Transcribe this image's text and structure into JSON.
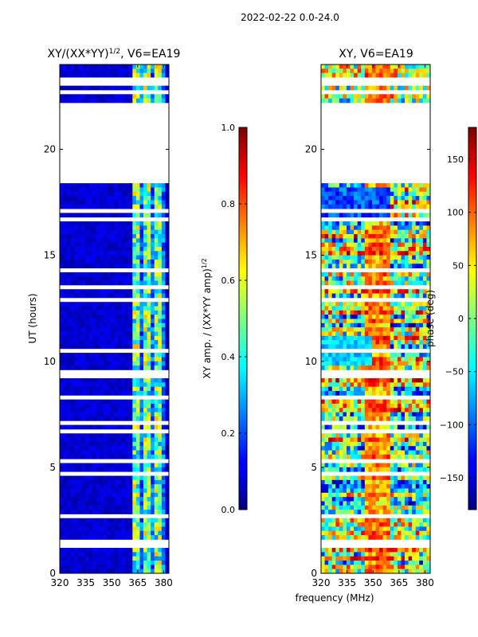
{
  "suptitle": "2022-02-22 0.0-24.0",
  "shared_xlabel": "frequency (MHz)",
  "chart_data": [
    {
      "type": "heatmap",
      "title_main": "XY/(XX*YY)",
      "title_sup": "1/2",
      "title_suffix": ", V6=EA19",
      "xlabel": "frequency (MHz)",
      "ylabel": "UT (hours)",
      "xlim": [
        320,
        383
      ],
      "ylim": [
        0,
        24
      ],
      "xticks": [
        320,
        335,
        350,
        365,
        380
      ],
      "yticks": [
        0,
        5,
        10,
        15,
        20
      ],
      "colorbar": {
        "label_main": "XY amp. / (XX*YY amp)",
        "label_sup": "1/2",
        "range": [
          0.0,
          1.0
        ],
        "ticks": [
          "0.0",
          "0.2",
          "0.4",
          "0.6",
          "0.8",
          "1.0"
        ],
        "tick_values": [
          0.0,
          0.2,
          0.4,
          0.6,
          0.8,
          1.0
        ]
      },
      "data_gaps_hours": [
        [
          18.5,
          22.2
        ],
        [
          22.6,
          22.8
        ],
        [
          23.1,
          23.3
        ],
        [
          17.05,
          17.15
        ],
        [
          16.55,
          16.7
        ],
        [
          15.55,
          15.65
        ],
        [
          14.2,
          14.3
        ],
        [
          13.45,
          13.55
        ],
        [
          12.85,
          12.95
        ],
        [
          12.15,
          12.25
        ],
        [
          10.45,
          10.55
        ],
        [
          9.3,
          9.6
        ],
        [
          8.15,
          8.3
        ],
        [
          7.05,
          7.15
        ],
        [
          6.55,
          6.7
        ],
        [
          5.3,
          5.4
        ],
        [
          4.55,
          4.75
        ],
        [
          3.35,
          3.45
        ],
        [
          2.65,
          2.75
        ],
        [
          1.45,
          1.55
        ],
        [
          1.25,
          1.35
        ]
      ]
    },
    {
      "type": "heatmap",
      "title": "XY, V6=EA19",
      "xlabel": "frequency (MHz)",
      "xlim": [
        320,
        383
      ],
      "ylim": [
        0,
        24
      ],
      "xticks": [
        320,
        335,
        350,
        365,
        380
      ],
      "yticks": [
        0,
        5,
        10,
        15,
        20
      ],
      "colorbar": {
        "label": "phase (deg)",
        "range": [
          -180,
          180
        ],
        "ticks": [
          "150",
          "100",
          "50",
          "0",
          "−50",
          "−100",
          "−150"
        ],
        "tick_values": [
          150,
          100,
          50,
          0,
          -50,
          -100,
          -150
        ]
      },
      "data_gaps_hours": [
        [
          18.5,
          22.2
        ],
        [
          22.6,
          22.8
        ],
        [
          23.1,
          23.3
        ],
        [
          17.05,
          17.15
        ],
        [
          16.55,
          16.7
        ],
        [
          15.55,
          15.65
        ],
        [
          14.2,
          14.3
        ],
        [
          13.45,
          13.55
        ],
        [
          12.85,
          12.95
        ],
        [
          12.15,
          12.25
        ],
        [
          10.45,
          10.55
        ],
        [
          9.3,
          9.6
        ],
        [
          8.15,
          8.3
        ],
        [
          7.05,
          7.15
        ],
        [
          6.55,
          6.7
        ],
        [
          5.3,
          5.4
        ],
        [
          4.55,
          4.75
        ],
        [
          3.35,
          3.45
        ],
        [
          2.65,
          2.75
        ],
        [
          1.45,
          1.55
        ],
        [
          1.25,
          1.35
        ]
      ]
    }
  ]
}
